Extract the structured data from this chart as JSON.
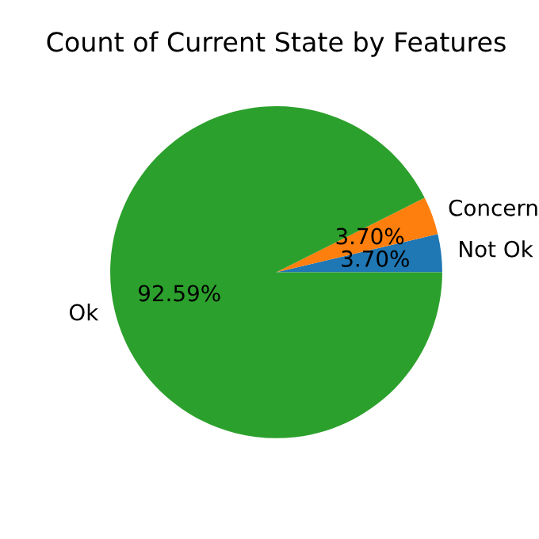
{
  "chart_data": {
    "type": "pie",
    "title": "Count of Current State by Features",
    "categories": [
      "Not Ok",
      "Concern",
      "Ok"
    ],
    "values": [
      3.7,
      3.7,
      92.59
    ],
    "colors": [
      "#1f77b4",
      "#ff7f0e",
      "#2ca02c"
    ],
    "value_labels": [
      "3.70%",
      "3.70%",
      "92.59%"
    ]
  }
}
